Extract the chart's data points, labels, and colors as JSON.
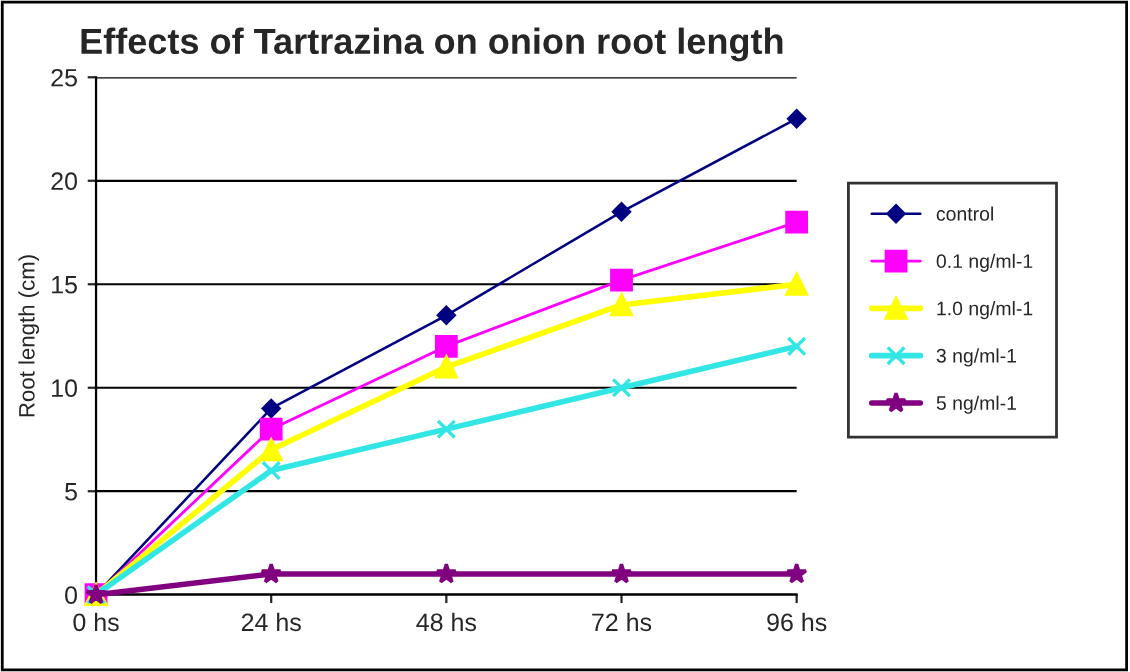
{
  "chart_data": {
    "type": "line",
    "title": "Effects of Tartrazina on onion root length",
    "ylabel": "Root length (cm)",
    "categories": [
      "0 hs",
      "24 hs",
      "48 hs",
      "72 hs",
      "96 hs"
    ],
    "series": [
      {
        "name": "control",
        "color": "#000080",
        "marker": "diamond",
        "values": [
          0,
          9,
          13.5,
          18.5,
          23
        ]
      },
      {
        "name": "0.1 ng/ml-1",
        "color": "#ff00ff",
        "marker": "square",
        "values": [
          0,
          8,
          12,
          15.2,
          18
        ]
      },
      {
        "name": "1.0 ng/ml-1",
        "color": "#ffff00",
        "marker": "triangle",
        "values": [
          0,
          7,
          11,
          14,
          15
        ]
      },
      {
        "name": "3 ng/ml-1",
        "color": "#33e6e6",
        "marker": "cross",
        "values": [
          0,
          6,
          8,
          10,
          12
        ]
      },
      {
        "name": "5 ng/ml-1",
        "color": "#800080",
        "marker": "star",
        "values": [
          0,
          1,
          1,
          1,
          1
        ]
      }
    ],
    "ylim": [
      0,
      25
    ],
    "yticks": [
      0,
      5,
      10,
      15,
      20,
      25
    ],
    "grid": "y",
    "legend": "right"
  }
}
